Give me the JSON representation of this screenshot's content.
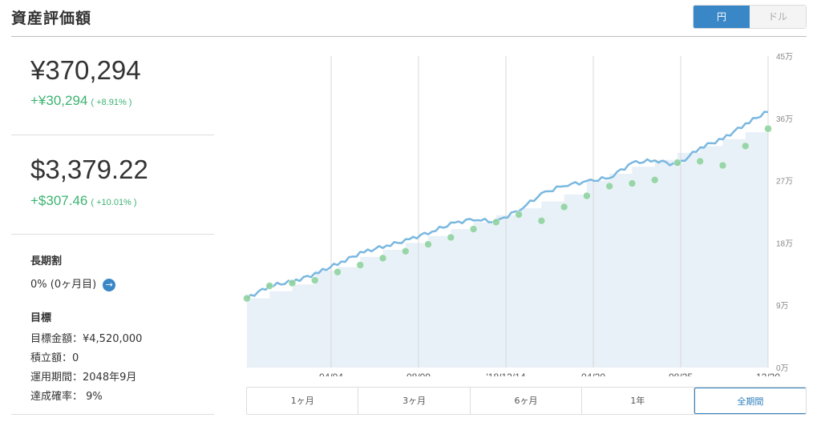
{
  "header": {
    "title": "資産評価額",
    "currency_toggle": {
      "yen": "円",
      "dollar": "ドル",
      "selected": "円"
    },
    "accent_color": "#3a87c8"
  },
  "yen": {
    "total": "¥370,294",
    "change": "+¥30,294",
    "change_pct": "( +8.91% )"
  },
  "usd": {
    "total": "$3,379.22",
    "change": "+$307.46",
    "change_pct": "( +10.01% )"
  },
  "long_term": {
    "heading": "長期割",
    "value": "0% (0ヶ月目)",
    "icon": "arrow-right-circle-icon"
  },
  "goal": {
    "heading": "目標",
    "target_amount": "目標金額：¥4,520,000",
    "accumulation": "積立額：0",
    "period": "運用期間：2048年9月",
    "achievement": "達成確率：  9%"
  },
  "chart_data": {
    "type": "area",
    "x_tick_labels": [
      "04/04",
      "08/09",
      "'18/12/14",
      "04/20",
      "08/25",
      "12/30"
    ],
    "y_tick_labels": [
      "0万",
      "9万",
      "18万",
      "27万",
      "36万",
      "45万"
    ],
    "ylim": [
      0,
      450000
    ],
    "series": [
      {
        "values": [
          100000,
          118000,
          124000,
          135000,
          150000,
          165000,
          175000,
          183000,
          195000,
          207000,
          215000,
          210000,
          228000,
          250000,
          264000,
          268000,
          275000,
          295000,
          300000,
          292000,
          318000,
          330000,
          352000,
          370000
        ]
      },
      {
        "values": [
          100000,
          110000,
          120000,
          140000,
          145000,
          160000,
          170000,
          180000,
          190000,
          200000,
          210000,
          220000,
          230000,
          240000,
          250000,
          270000,
          280000,
          290000,
          300000,
          310000,
          320000,
          330000,
          340000,
          345000
        ]
      }
    ],
    "markers": [
      100000,
      118000,
      122000,
      126000,
      138000,
      148000,
      158000,
      168000,
      178000,
      188000,
      200000,
      210000,
      221000,
      212000,
      232000,
      248000,
      262000,
      266000,
      271000,
      296000,
      298000,
      292000,
      320000,
      345000
    ],
    "line_color": "#7ab8e0",
    "fill_color": "#e8f0f8",
    "marker_color": "#8fd3a0"
  },
  "periods": [
    "1ヶ月",
    "3ヶ月",
    "6ヶ月",
    "1年",
    "全期間"
  ],
  "selected_period": "全期間"
}
